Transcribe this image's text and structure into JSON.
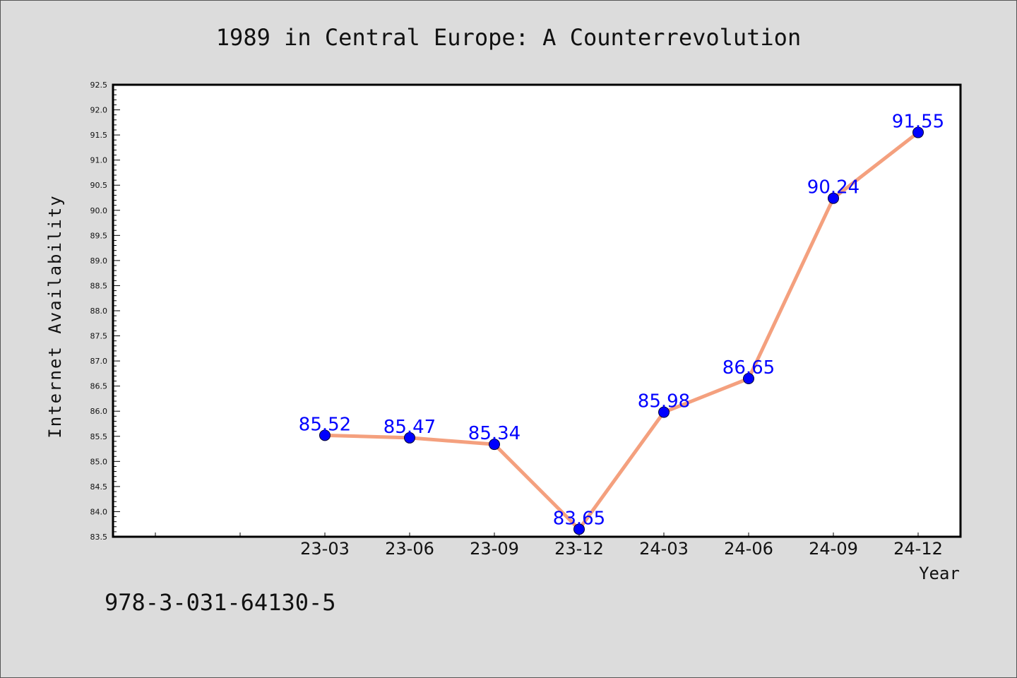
{
  "chart_data": {
    "type": "line",
    "title": "1989 in Central Europe: A Counterrevolution",
    "xlabel": "Year",
    "ylabel": "Internet Availability",
    "categories": [
      "23-03",
      "23-06",
      "23-09",
      "23-12",
      "24-03",
      "24-06",
      "24-09",
      "24-12"
    ],
    "values": [
      85.52,
      85.47,
      85.34,
      83.65,
      85.98,
      86.65,
      90.24,
      91.55
    ],
    "data_labels": [
      "85.52",
      "85.47",
      "85.34",
      "83.65",
      "85.98",
      "86.65",
      "90.24",
      "91.55"
    ],
    "ylim": [
      83.5,
      92.5
    ],
    "yticks": [
      "83.5",
      "84.0",
      "84.5",
      "85.0",
      "85.5",
      "86.0",
      "86.5",
      "87.0",
      "87.5",
      "88.0",
      "88.5",
      "89.0",
      "89.5",
      "90.0",
      "90.5",
      "91.0",
      "91.5",
      "92.0",
      "92.5"
    ],
    "grid": false,
    "legend": "none",
    "colors": {
      "line": "#f4a07e",
      "marker": "#0000ff",
      "data_label": "#0000ff",
      "background": "#dcdcdc",
      "plot_area": "#ffffff"
    }
  },
  "footer_text": "978-3-031-64130-5"
}
